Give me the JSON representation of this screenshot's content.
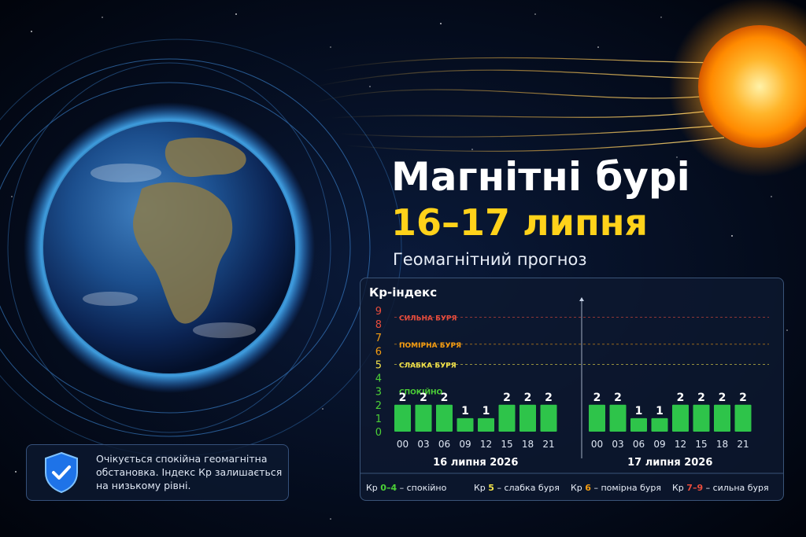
{
  "header": {
    "title_line1": "Магнітні бурі",
    "title_line2": "16–17 липня",
    "subtitle": "Геомагнітний прогноз"
  },
  "info_box": {
    "icon": "shield-check-icon",
    "text": "Очікується спокійна геомагнітна обстановка. Індекс Кр залишається на низькому рівні."
  },
  "colors": {
    "accent_yellow": "#ffd21a",
    "bar_green": "#2ec44a",
    "level_green": "#4cd137",
    "level_yellow": "#f2e24a",
    "level_orange": "#f39c12",
    "level_red": "#e74c3c"
  },
  "chart_data": {
    "type": "bar",
    "title": "Кр-індекс",
    "ylim": [
      0,
      9
    ],
    "y_ticks": [
      {
        "label": "0",
        "color": "#4cd137"
      },
      {
        "label": "1",
        "color": "#4cd137"
      },
      {
        "label": "2",
        "color": "#4cd137"
      },
      {
        "label": "3",
        "color": "#4cd137"
      },
      {
        "label": "4",
        "color": "#4cd137"
      },
      {
        "label": "5",
        "color": "#f2e24a"
      },
      {
        "label": "6",
        "color": "#f39c12"
      },
      {
        "label": "7",
        "color": "#f39c12"
      },
      {
        "label": "8",
        "color": "#e74c3c"
      },
      {
        "label": "9",
        "color": "#e74c3c"
      }
    ],
    "thresholds": [
      {
        "label": "СИЛЬНА БУРЯ",
        "value": 8.5,
        "color": "#e74c3c"
      },
      {
        "label": "ПОМІРНА БУРЯ",
        "value": 6.5,
        "color": "#f39c12"
      },
      {
        "label": "СЛАБКА БУРЯ",
        "value": 5,
        "color": "#f2e24a"
      },
      {
        "label": "СПОКІЙНО",
        "value": 3,
        "color": "#4cd137"
      }
    ],
    "days": [
      {
        "label": "16 липня 2026",
        "categories": [
          "00",
          "03",
          "06",
          "09",
          "12",
          "15",
          "18",
          "21"
        ],
        "values": [
          2,
          2,
          2,
          1,
          1,
          2,
          2,
          2
        ]
      },
      {
        "label": "17 липня 2026",
        "categories": [
          "00",
          "03",
          "06",
          "09",
          "12",
          "15",
          "18",
          "21"
        ],
        "values": [
          2,
          2,
          1,
          1,
          2,
          2,
          2,
          2
        ]
      }
    ],
    "legend": [
      {
        "prefix": "Кр ",
        "range": "0–4",
        "suffix": " – спокійно",
        "color": "#4cd137"
      },
      {
        "prefix": "Кр ",
        "range": "5",
        "suffix": " – слабка буря",
        "color": "#f2e24a"
      },
      {
        "prefix": "Кр ",
        "range": "6",
        "suffix": " – помірна буря",
        "color": "#f39c12"
      },
      {
        "prefix": "Кр ",
        "range": "7–9",
        "suffix": " – сильна буря",
        "color": "#e74c3c"
      }
    ]
  }
}
